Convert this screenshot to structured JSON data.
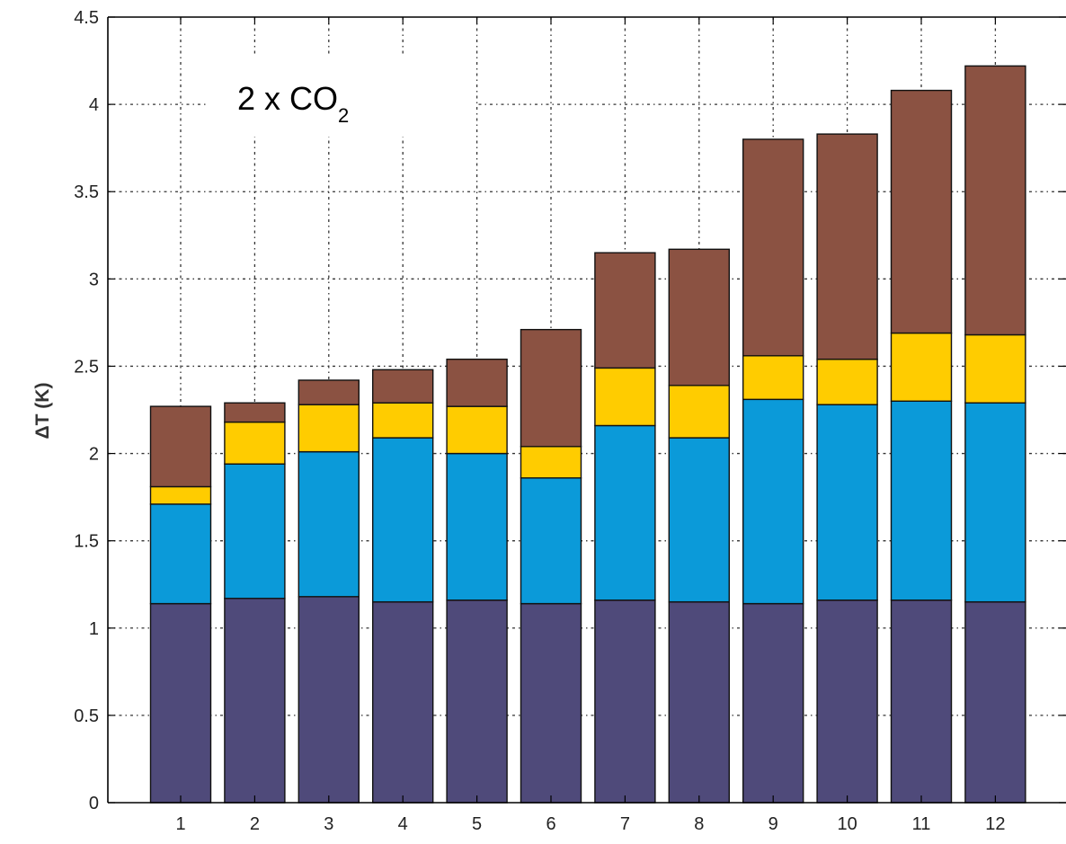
{
  "chart_data": {
    "type": "bar",
    "stacked": true,
    "categories": [
      "1",
      "2",
      "3",
      "4",
      "5",
      "6",
      "7",
      "8",
      "9",
      "10",
      "11",
      "12"
    ],
    "series": [
      {
        "color": "#4f4a7a",
        "values": [
          1.14,
          1.17,
          1.18,
          1.15,
          1.16,
          1.14,
          1.16,
          1.15,
          1.14,
          1.16,
          1.16,
          1.15
        ]
      },
      {
        "color": "#0b9ad9",
        "values": [
          0.57,
          0.77,
          0.83,
          0.94,
          0.84,
          0.72,
          1.0,
          0.94,
          1.17,
          1.12,
          1.14,
          1.14
        ]
      },
      {
        "color": "#ffcc00",
        "values": [
          0.1,
          0.24,
          0.27,
          0.2,
          0.27,
          0.18,
          0.33,
          0.3,
          0.25,
          0.26,
          0.39,
          0.39
        ]
      },
      {
        "color": "#8b5242",
        "values": [
          0.46,
          0.11,
          0.14,
          0.19,
          0.27,
          0.67,
          0.66,
          0.78,
          1.24,
          1.29,
          1.39,
          1.54
        ]
      }
    ],
    "title": "",
    "xlabel": "",
    "ylabel": "ΔT (K)",
    "ylim": [
      0,
      4.5
    ],
    "yticks": [
      "0",
      "0.5",
      "1",
      "1.5",
      "2",
      "2.5",
      "3",
      "3.5",
      "4",
      "4.5"
    ],
    "grid": true,
    "annotation": {
      "text": "2 x CO",
      "subscript": "2"
    }
  }
}
